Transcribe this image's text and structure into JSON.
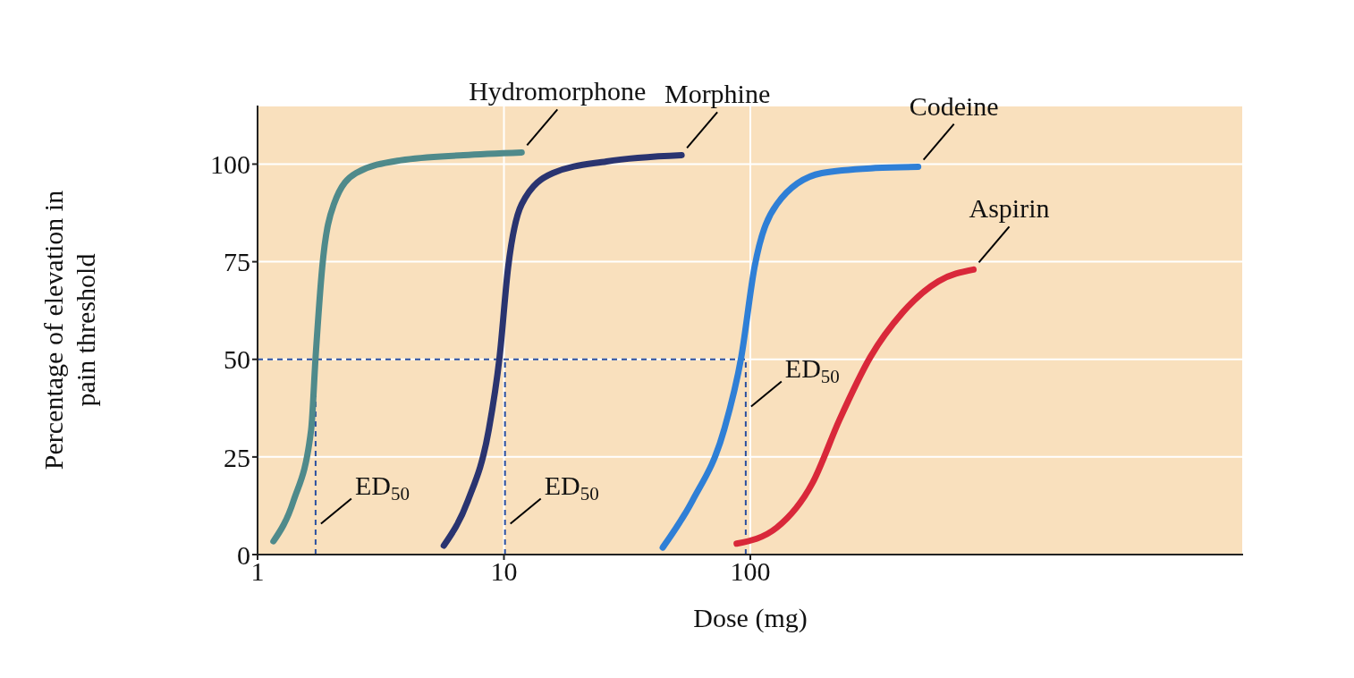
{
  "chart_data": {
    "type": "line",
    "xlabel": "Dose (mg)",
    "ylabel": "Percentage of elevation in pain threshold",
    "log": "x",
    "xlim": [
      1,
      10000
    ],
    "xticks": [
      1,
      10,
      100
    ],
    "ylim": [
      0,
      115
    ],
    "yticks": [
      0,
      25,
      50,
      75,
      100
    ],
    "grid": true,
    "line_style": "solid",
    "series": [
      {
        "name": "Hydromorphone",
        "color": "#4f8a8b",
        "x": [
          1.16,
          1.4,
          1.65,
          1.72,
          1.83,
          2.04,
          2.51,
          3.82,
          6.85,
          11.8
        ],
        "values": [
          3.4,
          13.8,
          32,
          50.6,
          73.6,
          89.7,
          97.7,
          101,
          102.3,
          103
        ]
      },
      {
        "name": "Morphine",
        "color": "#2a3470",
        "x": [
          5.7,
          7.14,
          8.68,
          9.6,
          10.4,
          11.8,
          15.8,
          26.1,
          52.6
        ],
        "values": [
          2.3,
          13.8,
          32,
          50.6,
          73.6,
          89.7,
          97.7,
          100.7,
          102.3
        ]
      },
      {
        "name": "Codeine",
        "color": "#2f7fd6",
        "x": [
          44.1,
          58.2,
          78.3,
          91.9,
          104,
          128,
          195,
          322,
          480
        ],
        "values": [
          1.8,
          13.8,
          32,
          50.6,
          73.6,
          89.7,
          97.7,
          99,
          99.3
        ]
      },
      {
        "name": "Aspirin",
        "color": "#d9283a",
        "x": [
          88,
          128,
          179,
          230,
          307,
          415,
          580,
          805
        ],
        "values": [
          2.8,
          6.9,
          18.4,
          34.5,
          50.6,
          62,
          70,
          73
        ]
      }
    ],
    "ref_lines": [
      {
        "axis": "y",
        "value": 50,
        "color": "#2a4fa0",
        "line_style": "dashed"
      },
      {
        "axis": "x",
        "value": 1.72,
        "color": "#2a4fa0",
        "line_style": "dashed"
      },
      {
        "axis": "x",
        "value": 10.1,
        "color": "#2a4fa0",
        "line_style": "dashed"
      },
      {
        "axis": "x",
        "value": 95.8,
        "color": "#2a4fa0",
        "line_style": "dashed"
      }
    ],
    "annotations": [
      {
        "text": "ED$_{50}$",
        "x": 1.72,
        "y": 7
      },
      {
        "text": "ED$_{50}$",
        "x": 10.1,
        "y": 7
      },
      {
        "text": "ED$_{50}$",
        "x": 95.8,
        "y": 37
      }
    ]
  }
}
